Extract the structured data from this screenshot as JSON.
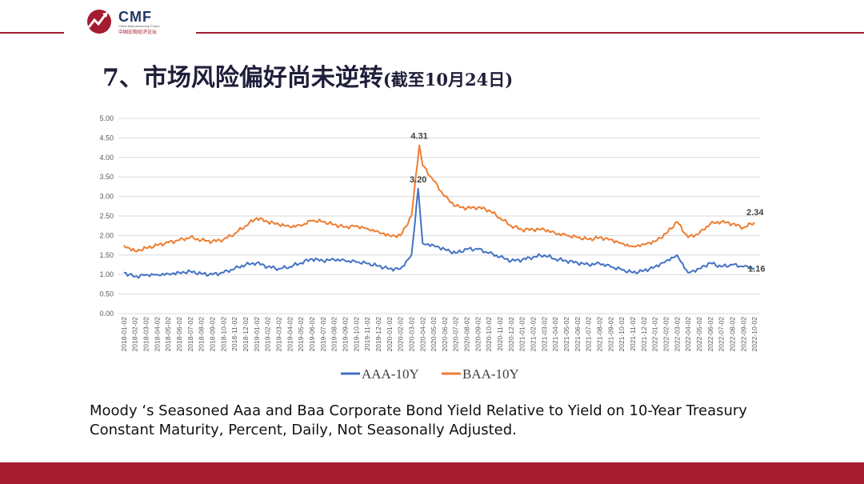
{
  "logo": {
    "name": "CMF",
    "subtitle": "China Macroeconomy Forum",
    "cn_name": "中国宏观经济论坛"
  },
  "slide": {
    "title_main": "7、市场风险偏好尚未逆转",
    "title_sub": "(截至10月24日)",
    "caption_line1": "Moody ‘s Seasoned Aaa  and Baa Corporate Bond Yield Relative to Yield on 10-Year Treasury",
    "caption_line2": "Constant Maturity, Percent, Daily, Not Seasonally Adjusted."
  },
  "colors": {
    "brand_red": "#a51c30",
    "aaa": "#4472c4",
    "baa": "#ed7d31",
    "grid": "#d9d9d9"
  },
  "chart_data": {
    "type": "line",
    "title": "",
    "xlabel": "",
    "ylabel": "",
    "ylim": [
      0,
      5
    ],
    "yticks": [
      "0.00",
      "0.50",
      "1.00",
      "1.50",
      "2.00",
      "2.50",
      "3.00",
      "3.50",
      "4.00",
      "4.50",
      "5.00"
    ],
    "x": [
      "2018-01-02",
      "2018-02-02",
      "2018-03-02",
      "2018-04-02",
      "2018-05-02",
      "2018-06-02",
      "2018-07-02",
      "2018-08-02",
      "2018-09-02",
      "2018-10-02",
      "2018-11-02",
      "2018-12-02",
      "2019-01-02",
      "2019-02-02",
      "2019-03-02",
      "2019-04-02",
      "2019-05-02",
      "2019-06-02",
      "2019-07-02",
      "2019-08-02",
      "2019-09-02",
      "2019-10-02",
      "2019-11-02",
      "2019-12-02",
      "2020-01-02",
      "2020-02-02",
      "2020-03-02",
      "2020-04-02",
      "2020-05-02",
      "2020-06-02",
      "2020-07-02",
      "2020-08-02",
      "2020-09-02",
      "2020-10-02",
      "2020-11-02",
      "2020-12-02",
      "2021-01-02",
      "2021-02-02",
      "2021-03-02",
      "2021-04-02",
      "2021-05-02",
      "2021-06-02",
      "2021-07-02",
      "2021-08-02",
      "2021-09-02",
      "2021-10-02",
      "2021-11-02",
      "2021-12-02",
      "2022-01-02",
      "2022-02-02",
      "2022-03-02",
      "2022-04-02",
      "2022-05-02",
      "2022-06-02",
      "2022-07-02",
      "2022-08-02",
      "2022-09-02",
      "2022-10-02"
    ],
    "legend_position": "bottom",
    "series": [
      {
        "name": "AAA-10Y",
        "color": "#4472c4",
        "values": [
          1.05,
          0.95,
          1.0,
          1.0,
          1.02,
          1.05,
          1.08,
          1.02,
          1.0,
          1.05,
          1.15,
          1.25,
          1.3,
          1.2,
          1.15,
          1.2,
          1.3,
          1.4,
          1.35,
          1.38,
          1.35,
          1.32,
          1.28,
          1.22,
          1.15,
          1.15,
          1.5,
          1.8,
          1.75,
          1.65,
          1.55,
          1.65,
          1.65,
          1.55,
          1.45,
          1.35,
          1.38,
          1.45,
          1.5,
          1.4,
          1.35,
          1.3,
          1.25,
          1.28,
          1.2,
          1.12,
          1.05,
          1.1,
          1.2,
          1.35,
          1.5,
          1.05,
          1.15,
          1.3,
          1.2,
          1.25,
          1.2,
          1.16
        ],
        "peak": {
          "x": "2020-03-20",
          "value": 3.2,
          "label": "3.20"
        },
        "end_label": "1.16"
      },
      {
        "name": "BAA-10Y",
        "color": "#ed7d31",
        "values": [
          1.75,
          1.6,
          1.68,
          1.75,
          1.82,
          1.88,
          1.95,
          1.88,
          1.85,
          1.9,
          2.05,
          2.25,
          2.45,
          2.35,
          2.28,
          2.22,
          2.25,
          2.38,
          2.35,
          2.28,
          2.22,
          2.25,
          2.18,
          2.1,
          2.0,
          2.0,
          2.5,
          3.8,
          3.4,
          3.0,
          2.75,
          2.7,
          2.72,
          2.65,
          2.45,
          2.25,
          2.15,
          2.15,
          2.15,
          2.05,
          2.0,
          1.95,
          1.9,
          1.95,
          1.9,
          1.8,
          1.72,
          1.78,
          1.85,
          2.05,
          2.35,
          1.95,
          2.05,
          2.3,
          2.35,
          2.3,
          2.2,
          2.34
        ],
        "peak": {
          "x": "2020-03-23",
          "value": 4.31,
          "label": "4.31"
        },
        "end_label": "2.34"
      }
    ]
  }
}
